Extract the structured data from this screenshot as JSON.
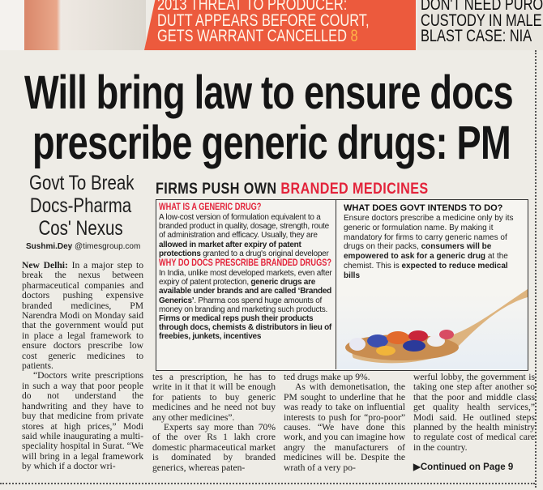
{
  "teasers": {
    "center": [
      "2013 THREAT TO PRODUCER:",
      "DUTT APPEARS BEFORE COURT,",
      "GETS WARRANT CANCELLED"
    ],
    "center_page": "8",
    "right": [
      "DON'T NEED PURO",
      "CUSTODY IN MALE",
      "BLAST CASE: NIA"
    ]
  },
  "headline": [
    "Will bring law to ensure docs",
    "prescribe generic drugs: PM"
  ],
  "subhead": [
    "Govt To Break",
    "Docs-Pharma",
    "Cos' Nexus"
  ],
  "byline": {
    "name": "Sushmi.Dey",
    "handle": "@timesgroup.com"
  },
  "body": {
    "dateline": "New Delhi:",
    "p1": "In a major step to break the nexus between pharmaceutical companies and doctors pushing expensive branded medicines, PM Narendra Modi on Monday said that the government would put in place a legal framework to ensure doctors prescribe low cost generic medicines to patients.",
    "p2": "“Doctors write prescriptions in such a way that poor people do not understand the handwriting and they have to buy that medicine from private stores at high prices,” Modi said while inaugurating a multi-speciality hospital in Surat. “We will bring in a legal framework by which if a doctor wri-",
    "p3": "tes a prescription, he has to write in it that it will be enough for patients to buy generic medicines and he need not buy any other medicines”.",
    "p4": "Experts say more than 70% of the over Rs 1 lakh crore domestic pharmaceutical market is dominated by branded generics, whereas paten-",
    "p5": "ted drugs make up 9%.",
    "p6": "As with demonetisation, the PM sought to underline that he was ready to take on influential interests to push for “pro-poor” causes. “We have done this work, and you can imagine how angry the manufacturers of medicines will be. Despite the wrath of a very po-",
    "p7": "werful lobby, the government is taking one step after another so that the poor and middle class get quality health services,” Modi said. He outlined steps planned by the health ministry to regulate cost of medical care in the country.",
    "continued": "Continued on Page 9"
  },
  "box": {
    "title_black": "FIRMS PUSH OWN",
    "title_red": "BRANDED MEDICINES",
    "q1": "WHAT IS A GENERIC DRUG?",
    "a1_plain": "A low-cost version of formulation equivalent to a branded product in quality, dosage, strength, route of administration and efficacy. Usually, they are ",
    "a1_bold": "allowed in market after expiry of patent protections",
    "a1_end": " granted to a drug's original developer",
    "q2": "WHY DO DOCS PRESCRIBE BRANDED DRUGS?",
    "a2_plain": "In India, unlike most developed markets, even after expiry of patent protection, ",
    "a2_bold": "generic drugs are available under brands and are called ‘Branded Generics’",
    "a2_mid": ". Pharma cos spend huge amounts of money on branding and marketing such products. ",
    "a2_bold2": "Firms or medical reps push their products through docs, chemists & distributors in lieu of freebies, junkets, incentives",
    "q3": "WHAT DOES GOVT INTENDS TO DO?",
    "a3_plain": "Ensure doctors prescribe a medicine only by its generic or formulation name. By making it mandatory for firms to carry generic names of drugs on their packs, ",
    "a3_bold": "consumers will be empowered to ask for a generic drug",
    "a3_mid": " at the chemist. This is ",
    "a3_bold2": "expected to reduce medical bills"
  },
  "colors": {
    "accent_red": "#e3233a",
    "teaser_red": "#ec5a3d"
  }
}
